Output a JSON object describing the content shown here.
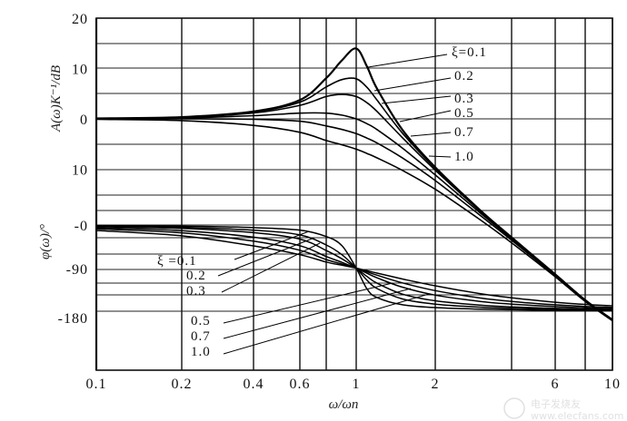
{
  "chart_data": {
    "type": "line",
    "title": "",
    "xlabel": "ω/ωn",
    "x_scale": "log",
    "xlim": [
      0.1,
      10
    ],
    "x_ticks": [
      {
        "value": 0.1,
        "label": "0.1"
      },
      {
        "value": 0.2,
        "label": "0.2"
      },
      {
        "value": 0.4,
        "label": "0.4"
      },
      {
        "value": 0.6,
        "label": "0.6"
      },
      {
        "value": 0.8,
        "label": ""
      },
      {
        "value": 1,
        "label": "1"
      },
      {
        "value": 2,
        "label": "2"
      },
      {
        "value": 4,
        "label": ""
      },
      {
        "value": 6,
        "label": "6"
      },
      {
        "value": 8,
        "label": ""
      },
      {
        "value": 10,
        "label": "10"
      }
    ],
    "grid": true,
    "x": [
      0.1,
      0.2,
      0.4,
      0.6,
      0.8,
      0.9,
      1,
      1.1,
      1.2,
      1.5,
      2,
      3,
      4,
      6,
      8,
      10
    ],
    "magnitude": {
      "ylabel": "A(ω)K⁻¹/dB",
      "ylim": [
        -40,
        20
      ],
      "y_ticks": [
        {
          "value": 20,
          "label": "20"
        },
        {
          "value": 10,
          "label": "10"
        },
        {
          "value": 0,
          "label": "0"
        },
        {
          "value": -10,
          "label": "10"
        }
      ],
      "series": [
        {
          "name": "ξ=0.1",
          "label": "ξ=0.1",
          "values": [
            0.09,
            0.35,
            1.48,
            3.73,
            8.09,
            11.64,
            13.98,
            10.34,
            6.0,
            -2.18,
            -9.62,
            -18.09,
            -23.53,
            -30.89,
            -35.99,
            -39.91
          ]
        },
        {
          "name": "0.2",
          "label": "0.2",
          "values": [
            0.08,
            0.32,
            1.36,
            3.31,
            6.35,
            7.81,
            7.96,
            6.24,
            3.73,
            -2.84,
            -9.84,
            -18.16,
            -23.57,
            -30.9,
            -36.0,
            -39.92
          ]
        },
        {
          "name": "0.3",
          "label": "0.3",
          "values": [
            0.07,
            0.29,
            1.17,
            2.68,
            4.44,
            4.85,
            4.44,
            3.19,
            1.48,
            -3.75,
            -10.19,
            -18.28,
            -23.63,
            -30.93,
            -36.01,
            -39.93
          ]
        },
        {
          "name": "0.5",
          "label": "0.5",
          "values": [
            0.04,
            0.17,
            0.63,
            1.14,
            1.14,
            0.73,
            0,
            -0.98,
            -2.13,
            -5.81,
            -11.14,
            -18.63,
            -23.82,
            -31.01,
            -36.06,
            -39.96
          ]
        },
        {
          "name": "0.7",
          "label": "0.7",
          "values": [
            0,
            0,
            -0.08,
            -0.47,
            -1.41,
            -2.11,
            -2.92,
            -3.83,
            -4.79,
            -7.76,
            -12.26,
            -19.12,
            -24.09,
            -31.12,
            -36.12,
            -40.0
          ]
        },
        {
          "name": "1.0",
          "label": "1.0",
          "values": [
            -0.09,
            -0.34,
            -1.29,
            -2.67,
            -4.3,
            -5.15,
            -6.02,
            -6.89,
            -7.75,
            -10.24,
            -13.98,
            -20,
            -24.61,
            -31.36,
            -36.26,
            -40.09
          ]
        }
      ]
    },
    "phase": {
      "ylabel": "φ(ω)/°",
      "ylim": [
        -180,
        0
      ],
      "y_ticks": [
        {
          "value": 0,
          "label": "-0"
        },
        {
          "value": -90,
          "label": "-90"
        },
        {
          "value": -180,
          "label": "-180"
        }
      ],
      "series": [
        {
          "name": "ξ=0.1",
          "label": "ξ =0.1",
          "values": [
            -1.16,
            -2.39,
            -5.44,
            -10.62,
            -23.96,
            -43.45,
            -90,
            -133.67,
            -151.39,
            -166.5,
            -172.41,
            -175.71,
            -176.95,
            -178.04,
            -178.55,
            -178.84
          ]
        },
        {
          "name": "0.2",
          "label": "0.2",
          "values": [
            -2.31,
            -4.76,
            -10.78,
            -20.56,
            -41.63,
            -62.18,
            -90,
            -115.51,
            -132.51,
            -154.36,
            -165.07,
            -171.47,
            -173.91,
            -176.08,
            -177.09,
            -177.69
          ]
        },
        {
          "name": "0.3",
          "label": "0.3",
          "values": [
            -3.47,
            -7.13,
            -15.95,
            -29.36,
            -53.13,
            -70.62,
            -90,
            -107.65,
            -121.43,
            -144.25,
            -158.2,
            -167.32,
            -170.91,
            -174.13,
            -175.64,
            -176.53
          ]
        },
        {
          "name": "0.5",
          "label": "0.5",
          "values": [
            -5.77,
            -11.77,
            -25.46,
            -43.15,
            -65.77,
            -78.07,
            -90,
            -100.81,
            -110.14,
            -129.81,
            -146.31,
            -159.44,
            -165.07,
            -170.27,
            -172.76,
            -174.23
          ]
        },
        {
          "name": "0.7",
          "label": "0.7",
          "values": [
            -8.05,
            -16.26,
            -33.69,
            -52.7,
            -72.12,
            -81.43,
            -90,
            -97.76,
            -104.7,
            -120.76,
            -136.97,
            -152.31,
            -159.53,
            -166.5,
            -169.92,
            -171.95
          ]
        },
        {
          "name": "1.0",
          "label": "1.0",
          "values": [
            -11.42,
            -22.62,
            -43.6,
            -61.93,
            -77.32,
            -83.97,
            -90,
            -95.45,
            -100.39,
            -112.62,
            -126.87,
            -143.13,
            -151.93,
            -161.08,
            -165.75,
            -168.58
          ]
        }
      ]
    },
    "legend": "inline-labels"
  },
  "watermark": {
    "brand": "电子发烧友",
    "url": "www.elecfans.com"
  }
}
